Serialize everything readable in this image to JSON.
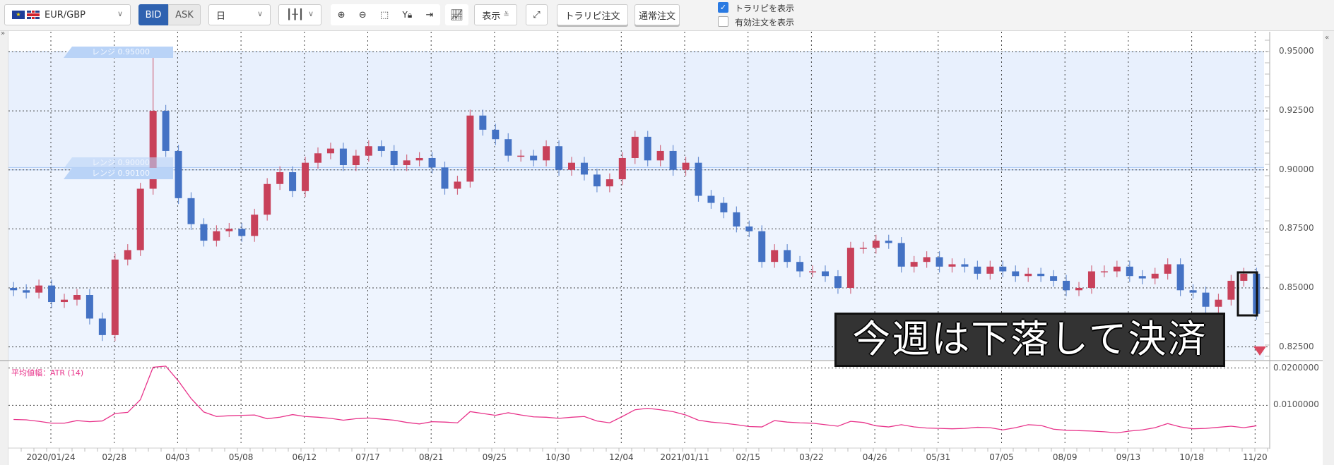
{
  "toolbar": {
    "pair": "EUR/GBP",
    "bid": "BID",
    "ask": "ASK",
    "timeframe": "日",
    "display_label": "表示",
    "trarepi_order": "トラリピ注文",
    "normal_order": "通常注文",
    "show_trarepi": "トラリピを表示",
    "show_trarepi_checked": true,
    "show_active_orders": "有効注文を表示",
    "show_active_orders_checked": false,
    "icons": [
      "zoom-in-icon",
      "zoom-out-icon",
      "fit-icon",
      "y-lock-icon",
      "jump-to-end-icon",
      "indicator-icon",
      "expand-icon"
    ]
  },
  "ranges": {
    "upper": "レンジ 0.95000",
    "lower_a": "レンジ 0.90000",
    "lower_b": "レンジ 0.90100"
  },
  "caption": "今週は下落して決済",
  "atr_label": "平均値幅：ATR (14)",
  "colors": {
    "up": "#c8415a",
    "down": "#4472c4",
    "atr": "#e8338a",
    "range_fill": "#e8f0fd",
    "bid_active": "#2f62b0",
    "signal_triangle": "#d9475f"
  },
  "chart_data": [
    {
      "type": "candlestick",
      "interval_note_shown": "日",
      "y_ticks": [
        "0.95000",
        "0.92500",
        "0.90000",
        "0.87500",
        "0.85000",
        "0.82500"
      ],
      "ylim": [
        0.8195,
        0.9585
      ],
      "x_tick_labels": [
        "2020/01/24",
        "02/28",
        "04/03",
        "05/08",
        "06/12",
        "07/17",
        "08/21",
        "09/25",
        "10/30",
        "12/04",
        "2021/01/11",
        "02/15",
        "03/22",
        "04/26",
        "05/31",
        "07/05",
        "08/09",
        "09/13",
        "10/18",
        "11/20"
      ],
      "first_open": 0.85,
      "weekly_close": [
        0.849,
        0.848,
        0.851,
        0.844,
        0.845,
        0.847,
        0.837,
        0.83,
        0.862,
        0.866,
        0.892,
        0.925,
        0.908,
        0.888,
        0.877,
        0.87,
        0.874,
        0.875,
        0.872,
        0.881,
        0.894,
        0.899,
        0.891,
        0.903,
        0.907,
        0.909,
        0.902,
        0.906,
        0.91,
        0.908,
        0.902,
        0.904,
        0.905,
        0.901,
        0.892,
        0.895,
        0.923,
        0.917,
        0.913,
        0.906,
        0.906,
        0.904,
        0.91,
        0.9,
        0.903,
        0.898,
        0.893,
        0.896,
        0.905,
        0.914,
        0.904,
        0.908,
        0.9,
        0.903,
        0.889,
        0.886,
        0.882,
        0.876,
        0.874,
        0.861,
        0.866,
        0.861,
        0.857,
        0.857,
        0.855,
        0.85,
        0.867,
        0.867,
        0.87,
        0.869,
        0.859,
        0.861,
        0.863,
        0.859,
        0.86,
        0.859,
        0.856,
        0.859,
        0.857,
        0.855,
        0.856,
        0.855,
        0.853,
        0.849,
        0.85,
        0.857,
        0.857,
        0.859,
        0.855,
        0.854,
        0.856,
        0.86,
        0.849,
        0.848,
        0.842,
        0.845,
        0.853,
        0.856,
        0.839
      ],
      "range_levels": [
        0.95,
        0.901,
        0.9
      ]
    },
    {
      "type": "line",
      "series": [
        {
          "name": "平均値幅：ATR (14)",
          "values": [
            0.0062,
            0.0061,
            0.0057,
            0.0052,
            0.0052,
            0.0059,
            0.0056,
            0.0058,
            0.0078,
            0.0081,
            0.0115,
            0.0202,
            0.0205,
            0.0165,
            0.0118,
            0.0082,
            0.007,
            0.0072,
            0.0073,
            0.0074,
            0.0064,
            0.0068,
            0.0075,
            0.007,
            0.0068,
            0.0065,
            0.006,
            0.0064,
            0.0066,
            0.0063,
            0.006,
            0.0054,
            0.005,
            0.0056,
            0.0055,
            0.0053,
            0.0083,
            0.0078,
            0.0073,
            0.008,
            0.0074,
            0.0069,
            0.0068,
            0.0065,
            0.0068,
            0.007,
            0.0058,
            0.0053,
            0.007,
            0.0088,
            0.0092,
            0.0088,
            0.0083,
            0.0074,
            0.006,
            0.0055,
            0.0052,
            0.0048,
            0.0043,
            0.0042,
            0.0059,
            0.0055,
            0.0053,
            0.0052,
            0.0048,
            0.0044,
            0.0057,
            0.0054,
            0.0045,
            0.0042,
            0.0048,
            0.0042,
            0.0039,
            0.0038,
            0.0037,
            0.0038,
            0.0041,
            0.004,
            0.0034,
            0.004,
            0.0048,
            0.0046,
            0.0036,
            0.0033,
            0.0032,
            0.0031,
            0.0029,
            0.0026,
            0.0031,
            0.0034,
            0.004,
            0.0051,
            0.0042,
            0.0037,
            0.0038,
            0.0041,
            0.0044,
            0.004,
            0.0045
          ]
        }
      ],
      "y_ticks": [
        "0.0200000",
        "0.0100000"
      ],
      "ylim": [
        -0.0009,
        0.0218
      ]
    }
  ]
}
